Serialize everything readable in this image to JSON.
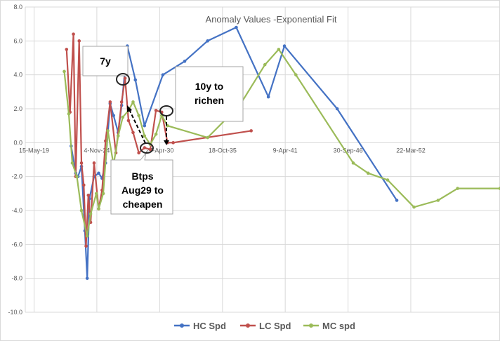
{
  "chart_data": {
    "type": "line",
    "title": "Anomaly Values -Exponential Fit",
    "xlabel": "",
    "ylabel": "",
    "x_tick_labels": [
      "15-May-19",
      "4-Nov-24",
      "27-Apr-30",
      "18-Oct-35",
      "9-Apr-41",
      "30-Sep-46",
      "22-Mar-52"
    ],
    "x_tick_values": [
      2019.37,
      2024.84,
      2030.32,
      2035.8,
      2041.27,
      2046.75,
      2052.22
    ],
    "xlim": [
      2018.6,
      2060.0
    ],
    "ylim": [
      -10.0,
      8.0
    ],
    "y_ticks": [
      "8.0",
      "6.0",
      "4.0",
      "2.0",
      "0.0",
      "-2.0",
      "-4.0",
      "-6.0",
      "-8.0",
      "-10.0"
    ],
    "y_tick_values": [
      8,
      6,
      4,
      2,
      0,
      -2,
      -4,
      -6,
      -8,
      -10
    ],
    "grid": "horizontal and vertical",
    "legend_position": "bottom",
    "series": [
      {
        "name": "HC Spd",
        "color": "#4472C4",
        "x": [
          2022.6,
          2023.0,
          2023.2,
          2023.5,
          2023.8,
          2024.0,
          2024.2,
          2024.6,
          2025.0,
          2025.3,
          2025.6,
          2026.0,
          2026.3,
          2026.7,
          2027.0,
          2027.5,
          2028.2,
          2029.0,
          2030.6,
          2032.5,
          2034.5,
          2037.0,
          2039.8,
          2041.2,
          2045.8,
          2051.0
        ],
        "y": [
          -0.2,
          -1.8,
          -2.0,
          -1.4,
          -5.2,
          -8.0,
          -3.3,
          -2.0,
          -1.8,
          -2.1,
          -1.2,
          2.3,
          1.6,
          0.6,
          2.2,
          5.7,
          3.7,
          1.0,
          4.0,
          4.8,
          6.0,
          6.8,
          2.7,
          5.7,
          2.0,
          -3.4
        ]
      },
      {
        "name": "LC Spd",
        "color": "#C0504D",
        "x": [
          2022.2,
          2022.5,
          2022.8,
          2023.0,
          2023.3,
          2023.5,
          2023.7,
          2023.9,
          2024.1,
          2024.3,
          2024.6,
          2025.0,
          2025.3,
          2025.6,
          2026.0,
          2026.5,
          2027.0,
          2027.3,
          2027.6,
          2028.0,
          2028.5,
          2029.0,
          2029.5,
          2030.0,
          2030.5,
          2031.0,
          2031.5,
          2038.3
        ],
        "y": [
          5.5,
          1.8,
          6.4,
          -2.0,
          6.0,
          -1.2,
          -2.5,
          -6.1,
          -3.1,
          -4.7,
          -1.2,
          -3.9,
          -2.8,
          0.1,
          2.4,
          -0.6,
          2.4,
          3.8,
          1.3,
          0.6,
          -0.6,
          -0.3,
          -0.4,
          1.9,
          1.8,
          0.0,
          0.0,
          0.7
        ]
      },
      {
        "name": "MC spd",
        "color": "#9BBB59",
        "x": [
          2022.0,
          2022.4,
          2022.7,
          2023.1,
          2023.5,
          2024.0,
          2024.3,
          2024.8,
          2025.0,
          2025.4,
          2025.8,
          2026.3,
          2026.7,
          2027.1,
          2027.6,
          2028.0,
          2028.5,
          2029.0,
          2029.5,
          2030.0,
          2030.5,
          2031.0,
          2034.5,
          2037.3,
          2039.5,
          2040.7,
          2042.2,
          2047.2,
          2048.5,
          2050.2,
          2052.5,
          2054.6,
          2056.3,
          2060.0
        ],
        "y": [
          4.2,
          1.7,
          -1.2,
          -2.0,
          -4.0,
          -5.5,
          -4.2,
          -3.0,
          -3.9,
          -3.0,
          0.7,
          -1.3,
          0.4,
          1.5,
          1.9,
          2.4,
          1.6,
          0.4,
          -0.1,
          0.5,
          1.6,
          1.0,
          0.3,
          2.2,
          4.6,
          5.5,
          4.0,
          -1.2,
          -1.8,
          -2.2,
          -3.8,
          -3.4,
          -2.7,
          -2.7
        ]
      }
    ],
    "annotations": [
      {
        "id": "note-7y",
        "text": [
          "7y"
        ]
      },
      {
        "id": "note-10y",
        "text": [
          "10y to",
          "richen"
        ]
      },
      {
        "id": "note-btps",
        "text": [
          "Btps",
          "Aug29 to",
          "cheapen"
        ]
      }
    ]
  }
}
